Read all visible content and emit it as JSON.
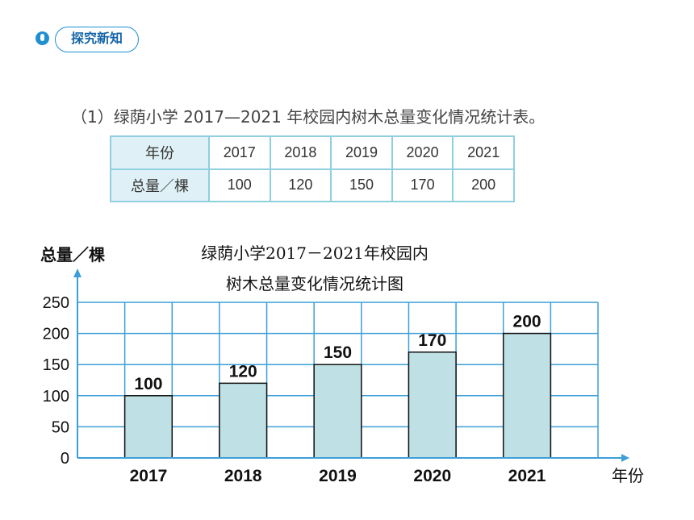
{
  "section_tag": {
    "label": "探究新知"
  },
  "heading": "（1）绿荫小学 2017—2021 年校园内树木总量变化情况统计表。",
  "table": {
    "row_header": "年份",
    "value_header": "总量／棵",
    "years": [
      "2017",
      "2018",
      "2019",
      "2020",
      "2021"
    ],
    "values": [
      "100",
      "120",
      "150",
      "170",
      "200"
    ]
  },
  "chart_data": {
    "type": "bar",
    "title_line1": "绿荫小学2017－2021年校园内",
    "title_line2": "树木总量变化情况统计图",
    "ylabel": "总量／棵",
    "xlabel": "年份",
    "categories": [
      "2017",
      "2018",
      "2019",
      "2020",
      "2021"
    ],
    "values": [
      100,
      120,
      150,
      170,
      200
    ],
    "data_labels": [
      "100",
      "120",
      "150",
      "170",
      "200"
    ],
    "ylim": [
      0,
      250
    ],
    "yticks": [
      0,
      50,
      100,
      150,
      200,
      250
    ],
    "ytick_labels": [
      "0",
      "50",
      "100",
      "150",
      "200",
      "250"
    ],
    "grid": true,
    "bar_color": "#bfe0e4",
    "grid_color": "#3c9fd8"
  }
}
